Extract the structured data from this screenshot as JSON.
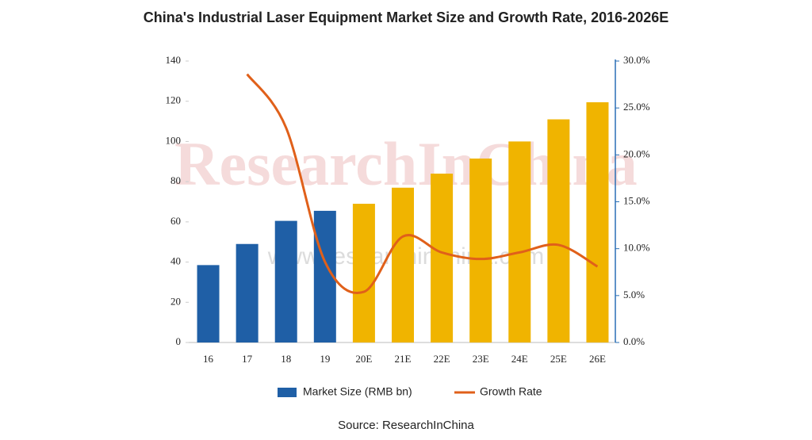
{
  "chart_data": {
    "type": "bar",
    "title": "China's Industrial Laser Equipment Market Size and Growth Rate, 2016-2026E",
    "categories": [
      "16",
      "17",
      "18",
      "19",
      "20E",
      "21E",
      "22E",
      "23E",
      "24E",
      "25E",
      "26E"
    ],
    "series": [
      {
        "name": "Market Size (RMB bn)",
        "color": "#1f5fa6",
        "colors": [
          "#1f5fa6",
          "#1f5fa6",
          "#1f5fa6",
          "#1f5fa6",
          "#f0b400",
          "#f0b400",
          "#f0b400",
          "#f0b400",
          "#f0b400",
          "#f0b400",
          "#f0b400"
        ],
        "values": [
          38.5,
          49,
          60.5,
          65.5,
          69,
          77,
          84,
          91.5,
          100,
          111,
          119.5
        ]
      },
      {
        "name": "Growth Rate",
        "type": "line",
        "axis": "y2",
        "color": "#e0601a",
        "values": [
          null,
          28.6,
          22.9,
          8.6,
          5.4,
          11.3,
          9.6,
          8.9,
          9.6,
          10.4,
          8.1
        ]
      }
    ],
    "ylim": [
      0,
      140
    ],
    "yticks": [
      0,
      20,
      40,
      60,
      80,
      100,
      120,
      140
    ],
    "y2lim": [
      0,
      30
    ],
    "y2ticks": [
      {
        "value": 0,
        "label": "0.0%"
      },
      {
        "value": 5,
        "label": "5.0%"
      },
      {
        "value": 10,
        "label": "10.0%"
      },
      {
        "value": 15,
        "label": "15.0%"
      },
      {
        "value": 20,
        "label": "20.0%"
      },
      {
        "value": 25,
        "label": "25.0%"
      },
      {
        "value": 30,
        "label": "30.0%"
      }
    ],
    "watermark": "ResearchInChina",
    "watermark_url": "www.researchinchina.com",
    "source": "Source: ResearchInChina"
  }
}
